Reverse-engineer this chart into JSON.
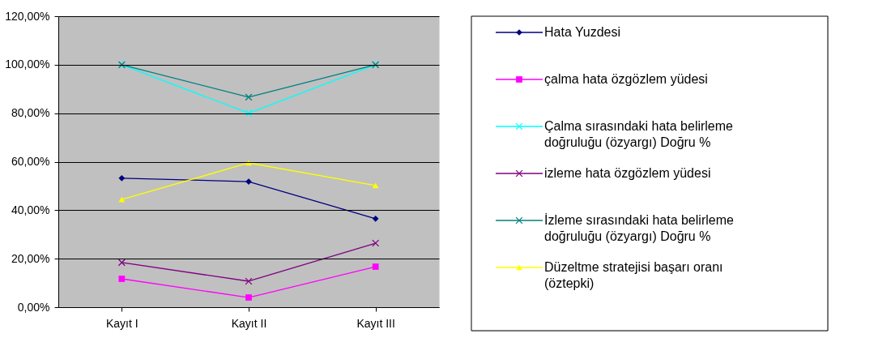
{
  "chart_data": {
    "type": "line",
    "categories": [
      "Kayıt I",
      "Kayıt II",
      "Kayıt III"
    ],
    "ylim": [
      0,
      120
    ],
    "yticks": [
      {
        "value": 0,
        "label": "0,00%"
      },
      {
        "value": 20,
        "label": "20,00%"
      },
      {
        "value": 40,
        "label": "40,00%"
      },
      {
        "value": 60,
        "label": "60,00%"
      },
      {
        "value": 80,
        "label": "80,00%"
      },
      {
        "value": 100,
        "label": "100,00%"
      },
      {
        "value": 120,
        "label": "120,00%"
      }
    ],
    "grid": "y",
    "legend": "right",
    "series": [
      {
        "name": "Hata Yuzdesi",
        "color": "#000080",
        "marker": "diamond",
        "values": [
          53.2,
          51.8,
          36.5
        ]
      },
      {
        "name": "çalma hata özgözlem yüdesi",
        "color": "#ff00ff",
        "marker": "square",
        "values": [
          11.7,
          4.0,
          16.7
        ]
      },
      {
        "name": "Çalma sırasındaki hata belirleme doğruluğu (özyargı) Doğru %",
        "color": "#00ffff",
        "marker": "cross",
        "values": [
          100,
          80,
          100
        ]
      },
      {
        "name": "izleme hata özgözlem yüdesi",
        "color": "#800080",
        "marker": "cross",
        "values": [
          18.4,
          10.7,
          26.4
        ]
      },
      {
        "name": "İzleme sırasındaki hata belirleme doğruluğu (özyargı) Doğru %",
        "color": "#008080",
        "marker": "cross",
        "values": [
          100,
          86.6,
          100
        ]
      },
      {
        "name": "Düzeltme stratejisi başarı oranı (öztepki)",
        "color": "#ffff00",
        "marker": "triangle",
        "values": [
          44.4,
          59.5,
          50.2
        ]
      }
    ]
  }
}
